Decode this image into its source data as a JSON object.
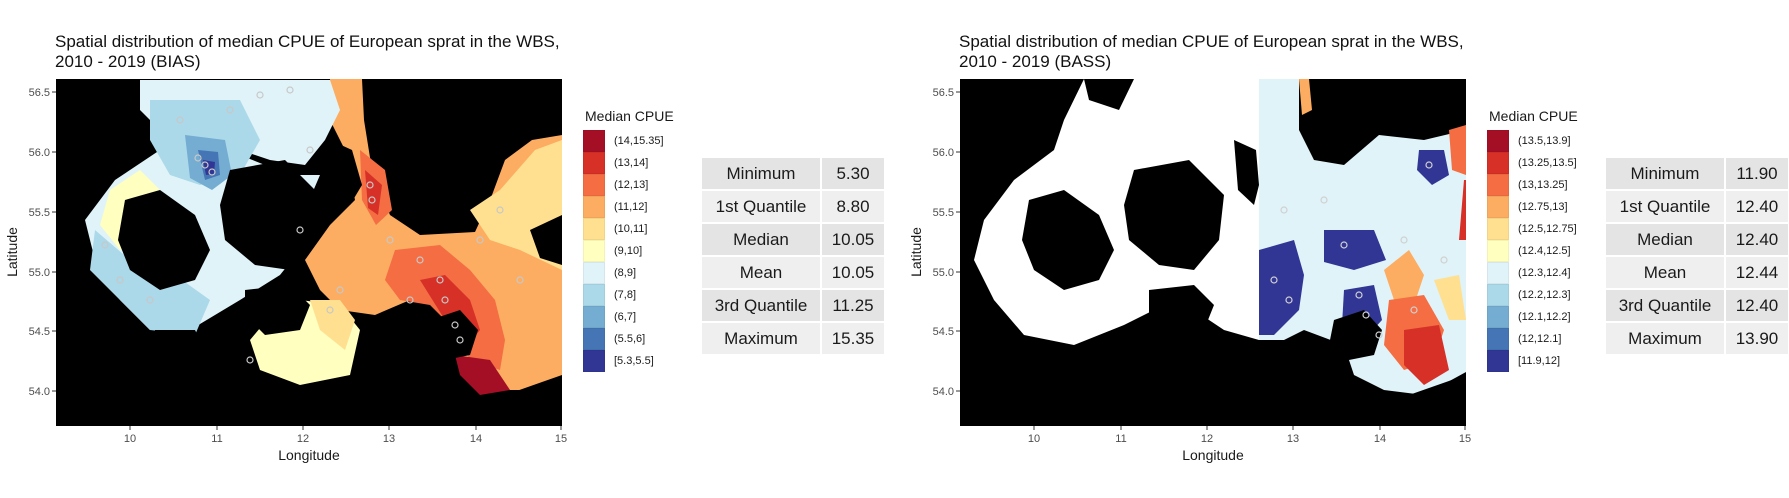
{
  "panels": [
    {
      "title_line1": "Spatial distribution of median CPUE of European sprat in the WBS,",
      "title_line2": "2010 - 2019 (BIAS)",
      "legend_title": "Median CPUE",
      "legend": [
        {
          "label": "(14,15.35]",
          "color": "#a50f26"
        },
        {
          "label": "(13,14]",
          "color": "#d63027"
        },
        {
          "label": "(12,13]",
          "color": "#f46d43"
        },
        {
          "label": "(11,12]",
          "color": "#fcad61"
        },
        {
          "label": "(10,11]",
          "color": "#fee090"
        },
        {
          "label": "(9,10]",
          "color": "#ffffbf"
        },
        {
          "label": "(8,9]",
          "color": "#e0f3f8"
        },
        {
          "label": "(7,8]",
          "color": "#abd9e9"
        },
        {
          "label": "(6,7]",
          "color": "#74add1"
        },
        {
          "label": "(5.5,6]",
          "color": "#4575b4"
        },
        {
          "label": "[5.3,5.5]",
          "color": "#313695"
        }
      ],
      "stats": [
        {
          "label": "Minimum",
          "value": "5.30"
        },
        {
          "label": "1st Quantile",
          "value": "8.80"
        },
        {
          "label": "Median",
          "value": "10.05"
        },
        {
          "label": "Mean",
          "value": "10.05"
        },
        {
          "label": "3rd Quantile",
          "value": "11.25"
        },
        {
          "label": "Maximum",
          "value": "15.35"
        }
      ]
    },
    {
      "title_line1": "Spatial distribution of median CPUE of European sprat in the WBS,",
      "title_line2": "2010 - 2019 (BASS)",
      "legend_title": "Median CPUE",
      "legend": [
        {
          "label": "(13.5,13.9]",
          "color": "#a50f26"
        },
        {
          "label": "(13.25,13.5]",
          "color": "#d63027"
        },
        {
          "label": "(13,13.25]",
          "color": "#f46d43"
        },
        {
          "label": "(12.75,13]",
          "color": "#fcad61"
        },
        {
          "label": "(12.5,12.75]",
          "color": "#fee090"
        },
        {
          "label": "(12.4,12.5]",
          "color": "#ffffbf"
        },
        {
          "label": "(12.3,12.4]",
          "color": "#e0f3f8"
        },
        {
          "label": "(12.2,12.3]",
          "color": "#abd9e9"
        },
        {
          "label": "(12.1,12.2]",
          "color": "#74add1"
        },
        {
          "label": "(12,12.1]",
          "color": "#4575b4"
        },
        {
          "label": "[11.9,12]",
          "color": "#313695"
        }
      ],
      "stats": [
        {
          "label": "Minimum",
          "value": "11.90"
        },
        {
          "label": "1st Quantile",
          "value": "12.40"
        },
        {
          "label": "Median",
          "value": "12.40"
        },
        {
          "label": "Mean",
          "value": "12.44"
        },
        {
          "label": "3rd Quantile",
          "value": "12.40"
        },
        {
          "label": "Maximum",
          "value": "13.90"
        }
      ]
    }
  ],
  "axes": {
    "x_label": "Longitude",
    "y_label": "Latitude",
    "x_ticks": [
      "10",
      "11",
      "12",
      "13",
      "14",
      "15"
    ],
    "y_ticks": [
      "56.5",
      "56.0",
      "55.5",
      "55.0",
      "54.5",
      "54.0"
    ]
  },
  "colors": {
    "land": "#000000",
    "station_marker": "#bdbdbd"
  }
}
